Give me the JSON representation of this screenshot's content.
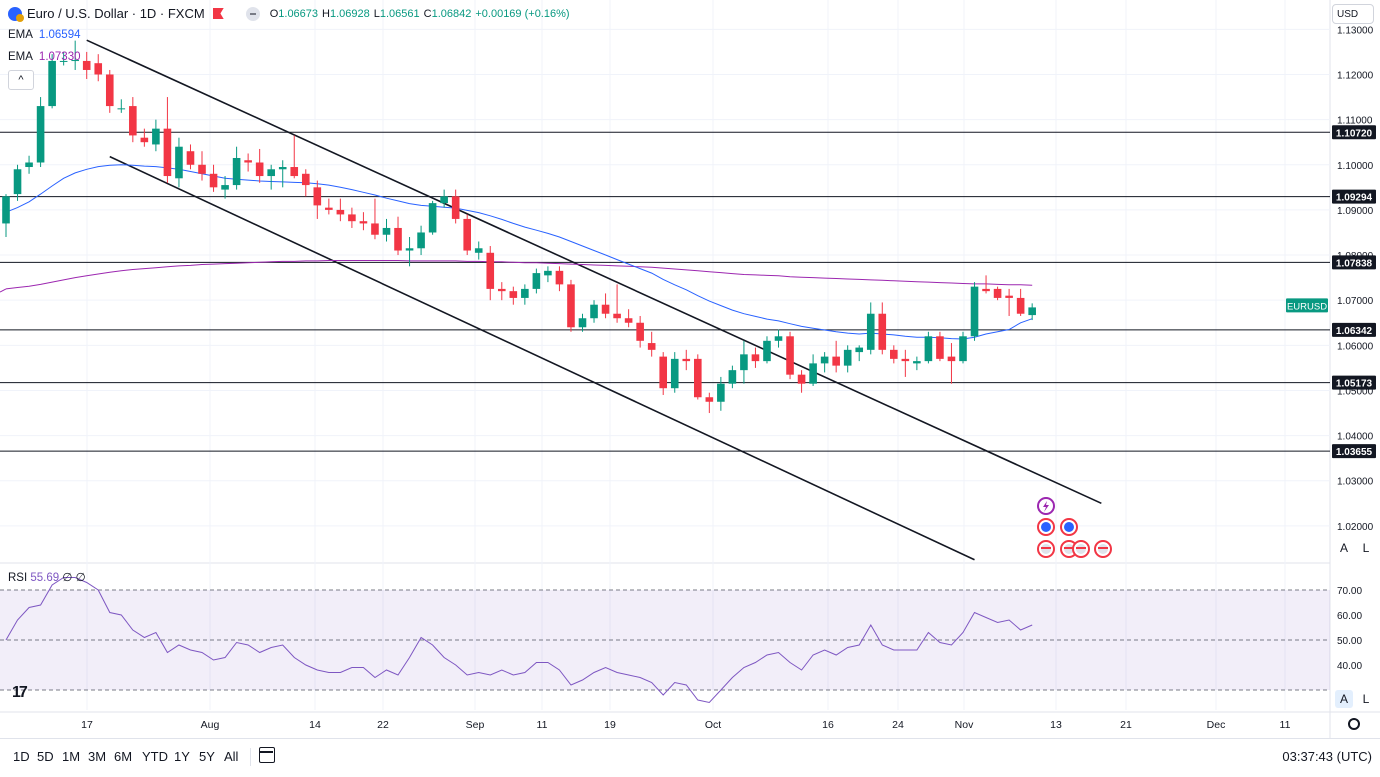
{
  "header": {
    "title": "Euro / U.S. Dollar · 1D · FXCM",
    "ohlc": [
      {
        "k": "O",
        "v": "1.06673"
      },
      {
        "k": "H",
        "v": "1.06928"
      },
      {
        "k": "L",
        "v": "1.06561"
      },
      {
        "k": "C",
        "v": "1.06842"
      }
    ],
    "change": "+0.00169 (+0.16%)"
  },
  "indicators": {
    "ema1": {
      "name": "EMA",
      "value": "1.06594",
      "color": "#2962ff"
    },
    "ema2": {
      "name": "EMA",
      "value": "1.07330",
      "color": "#9c27b0"
    },
    "rsi": {
      "name": "RSI",
      "value": "55.69",
      "extra": "∅ ∅",
      "color": "#7e57c2"
    }
  },
  "currency_label": "USD",
  "price_axis": {
    "ticks": [
      "1.13000",
      "1.12000",
      "1.11000",
      "1.10000",
      "1.09000",
      "1.08000",
      "1.07000",
      "1.06000",
      "1.05000",
      "1.04000",
      "1.03000",
      "1.02000"
    ],
    "levels": [
      "1.10720",
      "1.09294",
      "1.07838",
      "1.06342",
      "1.05173",
      "1.03655"
    ],
    "symbol_tag": "EURUSD"
  },
  "rsi_axis": {
    "ticks": [
      "70.00",
      "60.00",
      "50.00",
      "40.00"
    ]
  },
  "time_axis": [
    "17",
    "Aug",
    "14",
    "22",
    "Sep",
    "11",
    "19",
    "Oct",
    "16",
    "24",
    "Nov",
    "13",
    "21",
    "Dec",
    "11"
  ],
  "timeframes": [
    "1D",
    "5D",
    "1M",
    "3M",
    "6M",
    "YTD",
    "1Y",
    "5Y",
    "All"
  ],
  "clock": "03:37:43 (UTC)",
  "scale_buttons": {
    "auto": "A",
    "log": "L"
  },
  "colors": {
    "up": "#089981",
    "down": "#f23645",
    "ema_fast": "#2962ff",
    "ema_slow": "#9c27b0",
    "rsi": "#7e57c2"
  },
  "chart_data": {
    "type": "candlestick",
    "series_note": "Daily EUR/USD candles, approx Jul 11 – Nov 10",
    "candles": [
      {
        "o": 1.087,
        "h": 1.0935,
        "l": 1.084,
        "c": 1.093
      },
      {
        "o": 1.0935,
        "h": 1.1,
        "l": 1.092,
        "c": 1.099
      },
      {
        "o": 1.0995,
        "h": 1.102,
        "l": 1.098,
        "c": 1.1005
      },
      {
        "o": 1.1005,
        "h": 1.115,
        "l": 1.0995,
        "c": 1.113
      },
      {
        "o": 1.113,
        "h": 1.1245,
        "l": 1.1125,
        "c": 1.123
      },
      {
        "o": 1.123,
        "h": 1.125,
        "l": 1.122,
        "c": 1.123
      },
      {
        "o": 1.123,
        "h": 1.1275,
        "l": 1.121,
        "c": 1.1232
      },
      {
        "o": 1.123,
        "h": 1.125,
        "l": 1.119,
        "c": 1.121
      },
      {
        "o": 1.1225,
        "h": 1.1245,
        "l": 1.1185,
        "c": 1.12
      },
      {
        "o": 1.12,
        "h": 1.121,
        "l": 1.1115,
        "c": 1.113
      },
      {
        "o": 1.1125,
        "h": 1.1145,
        "l": 1.1115,
        "c": 1.1125
      },
      {
        "o": 1.113,
        "h": 1.115,
        "l": 1.105,
        "c": 1.1065
      },
      {
        "o": 1.106,
        "h": 1.108,
        "l": 1.104,
        "c": 1.105
      },
      {
        "o": 1.1045,
        "h": 1.11,
        "l": 1.103,
        "c": 1.108
      },
      {
        "o": 1.108,
        "h": 1.115,
        "l": 1.096,
        "c": 1.0975
      },
      {
        "o": 1.097,
        "h": 1.106,
        "l": 1.095,
        "c": 1.104
      },
      {
        "o": 1.103,
        "h": 1.1045,
        "l": 1.099,
        "c": 1.1
      },
      {
        "o": 1.1,
        "h": 1.103,
        "l": 1.0965,
        "c": 1.098
      },
      {
        "o": 1.098,
        "h": 1.1,
        "l": 1.094,
        "c": 1.095
      },
      {
        "o": 1.0945,
        "h": 1.0975,
        "l": 1.0925,
        "c": 1.0955
      },
      {
        "o": 1.0955,
        "h": 1.104,
        "l": 1.0945,
        "c": 1.1015
      },
      {
        "o": 1.101,
        "h": 1.1025,
        "l": 1.0985,
        "c": 1.1005
      },
      {
        "o": 1.1005,
        "h": 1.1035,
        "l": 1.096,
        "c": 1.0975
      },
      {
        "o": 1.0975,
        "h": 1.1,
        "l": 1.0945,
        "c": 1.099
      },
      {
        "o": 1.099,
        "h": 1.101,
        "l": 1.095,
        "c": 1.0995
      },
      {
        "o": 1.0995,
        "h": 1.1065,
        "l": 1.097,
        "c": 1.0975
      },
      {
        "o": 1.098,
        "h": 1.099,
        "l": 1.093,
        "c": 1.0955
      },
      {
        "o": 1.095,
        "h": 1.0965,
        "l": 1.088,
        "c": 1.091
      },
      {
        "o": 1.0905,
        "h": 1.0925,
        "l": 1.089,
        "c": 1.09
      },
      {
        "o": 1.09,
        "h": 1.0925,
        "l": 1.0875,
        "c": 1.089
      },
      {
        "o": 1.089,
        "h": 1.0905,
        "l": 1.086,
        "c": 1.0875
      },
      {
        "o": 1.0875,
        "h": 1.0895,
        "l": 1.0855,
        "c": 1.087
      },
      {
        "o": 1.087,
        "h": 1.0925,
        "l": 1.0835,
        "c": 1.0845
      },
      {
        "o": 1.0845,
        "h": 1.088,
        "l": 1.083,
        "c": 1.086
      },
      {
        "o": 1.086,
        "h": 1.0885,
        "l": 1.08,
        "c": 1.081
      },
      {
        "o": 1.081,
        "h": 1.084,
        "l": 1.0775,
        "c": 1.0815
      },
      {
        "o": 1.0815,
        "h": 1.0865,
        "l": 1.08,
        "c": 1.085
      },
      {
        "o": 1.085,
        "h": 1.092,
        "l": 1.0845,
        "c": 1.0915
      },
      {
        "o": 1.0915,
        "h": 1.0945,
        "l": 1.0905,
        "c": 1.093
      },
      {
        "o": 1.093,
        "h": 1.0945,
        "l": 1.087,
        "c": 1.088
      },
      {
        "o": 1.088,
        "h": 1.089,
        "l": 1.08,
        "c": 1.081
      },
      {
        "o": 1.0805,
        "h": 1.083,
        "l": 1.079,
        "c": 1.0815
      },
      {
        "o": 1.0805,
        "h": 1.082,
        "l": 1.07,
        "c": 1.0725
      },
      {
        "o": 1.0725,
        "h": 1.074,
        "l": 1.07,
        "c": 1.072
      },
      {
        "o": 1.072,
        "h": 1.073,
        "l": 1.069,
        "c": 1.0705
      },
      {
        "o": 1.0705,
        "h": 1.0735,
        "l": 1.069,
        "c": 1.0725
      },
      {
        "o": 1.0725,
        "h": 1.077,
        "l": 1.0715,
        "c": 1.076
      },
      {
        "o": 1.0755,
        "h": 1.0775,
        "l": 1.074,
        "c": 1.0765
      },
      {
        "o": 1.0765,
        "h": 1.0775,
        "l": 1.072,
        "c": 1.0735
      },
      {
        "o": 1.0735,
        "h": 1.0745,
        "l": 1.063,
        "c": 1.064
      },
      {
        "o": 1.064,
        "h": 1.067,
        "l": 1.063,
        "c": 1.066
      },
      {
        "o": 1.066,
        "h": 1.07,
        "l": 1.065,
        "c": 1.069
      },
      {
        "o": 1.069,
        "h": 1.0715,
        "l": 1.066,
        "c": 1.067
      },
      {
        "o": 1.067,
        "h": 1.0735,
        "l": 1.065,
        "c": 1.066
      },
      {
        "o": 1.066,
        "h": 1.068,
        "l": 1.064,
        "c": 1.065
      },
      {
        "o": 1.065,
        "h": 1.0665,
        "l": 1.0595,
        "c": 1.061
      },
      {
        "o": 1.0605,
        "h": 1.063,
        "l": 1.0575,
        "c": 1.059
      },
      {
        "o": 1.0575,
        "h": 1.0585,
        "l": 1.049,
        "c": 1.0505
      },
      {
        "o": 1.0505,
        "h": 1.0585,
        "l": 1.0495,
        "c": 1.057
      },
      {
        "o": 1.057,
        "h": 1.059,
        "l": 1.0545,
        "c": 1.0565
      },
      {
        "o": 1.057,
        "h": 1.058,
        "l": 1.048,
        "c": 1.0485
      },
      {
        "o": 1.0485,
        "h": 1.0495,
        "l": 1.045,
        "c": 1.0475
      },
      {
        "o": 1.0475,
        "h": 1.053,
        "l": 1.0455,
        "c": 1.0515
      },
      {
        "o": 1.0515,
        "h": 1.0555,
        "l": 1.0505,
        "c": 1.0545
      },
      {
        "o": 1.0545,
        "h": 1.061,
        "l": 1.0515,
        "c": 1.058
      },
      {
        "o": 1.058,
        "h": 1.0595,
        "l": 1.055,
        "c": 1.0565
      },
      {
        "o": 1.0565,
        "h": 1.062,
        "l": 1.056,
        "c": 1.061
      },
      {
        "o": 1.061,
        "h": 1.0635,
        "l": 1.0595,
        "c": 1.062
      },
      {
        "o": 1.062,
        "h": 1.063,
        "l": 1.0525,
        "c": 1.0535
      },
      {
        "o": 1.0535,
        "h": 1.0545,
        "l": 1.0495,
        "c": 1.0515
      },
      {
        "o": 1.0515,
        "h": 1.058,
        "l": 1.051,
        "c": 1.056
      },
      {
        "o": 1.056,
        "h": 1.0585,
        "l": 1.054,
        "c": 1.0575
      },
      {
        "o": 1.0575,
        "h": 1.061,
        "l": 1.054,
        "c": 1.0555
      },
      {
        "o": 1.0555,
        "h": 1.06,
        "l": 1.054,
        "c": 1.059
      },
      {
        "o": 1.0585,
        "h": 1.06,
        "l": 1.0565,
        "c": 1.0595
      },
      {
        "o": 1.059,
        "h": 1.0695,
        "l": 1.058,
        "c": 1.067
      },
      {
        "o": 1.067,
        "h": 1.0695,
        "l": 1.058,
        "c": 1.059
      },
      {
        "o": 1.059,
        "h": 1.06,
        "l": 1.056,
        "c": 1.057
      },
      {
        "o": 1.057,
        "h": 1.059,
        "l": 1.053,
        "c": 1.0565
      },
      {
        "o": 1.056,
        "h": 1.0575,
        "l": 1.0545,
        "c": 1.0565
      },
      {
        "o": 1.0565,
        "h": 1.063,
        "l": 1.056,
        "c": 1.062
      },
      {
        "o": 1.062,
        "h": 1.063,
        "l": 1.0565,
        "c": 1.057
      },
      {
        "o": 1.0575,
        "h": 1.0605,
        "l": 1.0515,
        "c": 1.0565
      },
      {
        "o": 1.0565,
        "h": 1.063,
        "l": 1.056,
        "c": 1.062
      },
      {
        "o": 1.062,
        "h": 1.074,
        "l": 1.061,
        "c": 1.073
      },
      {
        "o": 1.0725,
        "h": 1.0755,
        "l": 1.0715,
        "c": 1.072
      },
      {
        "o": 1.0725,
        "h": 1.073,
        "l": 1.07,
        "c": 1.0705
      },
      {
        "o": 1.071,
        "h": 1.0725,
        "l": 1.0665,
        "c": 1.0705
      },
      {
        "o": 1.0705,
        "h": 1.0725,
        "l": 1.0665,
        "c": 1.067
      },
      {
        "o": 1.0667,
        "h": 1.0693,
        "l": 1.0656,
        "c": 1.0684
      }
    ],
    "ema_fast": [
      1.0895,
      1.0905,
      1.0918,
      1.0935,
      1.0953,
      1.097,
      1.0982,
      1.099,
      1.0996,
      1.0999,
      1.1,
      1.0999,
      1.0997,
      1.0996,
      1.0993,
      1.099,
      1.0985,
      1.098,
      1.0975,
      1.097,
      1.0968,
      1.0966,
      1.0964,
      1.0963,
      1.0962,
      1.0961,
      1.096,
      1.0958,
      1.0955,
      1.095,
      1.0945,
      1.0939,
      1.0933,
      1.0926,
      1.092,
      1.0914,
      1.091,
      1.0908,
      1.0906,
      1.0904,
      1.0899,
      1.0894,
      1.0887,
      1.0879,
      1.087,
      1.0862,
      1.0855,
      1.0848,
      1.084,
      1.083,
      1.082,
      1.081,
      1.08,
      1.079,
      1.078,
      1.077,
      1.076,
      1.0746,
      1.0734,
      1.0723,
      1.071,
      1.0698,
      1.0688,
      1.0678,
      1.067,
      1.0664,
      1.0658,
      1.0654,
      1.0648,
      1.0642,
      1.0638,
      1.0634,
      1.063,
      1.0627,
      1.0625,
      1.0627,
      1.0625,
      1.0623,
      1.062,
      1.0618,
      1.0618,
      1.0617,
      1.0615,
      1.0614,
      1.0618,
      1.0625,
      1.063,
      1.0635,
      1.065,
      1.0659
    ],
    "ema_slow": [
      1.0725,
      1.0728,
      1.0731,
      1.0735,
      1.074,
      1.0745,
      1.075,
      1.0754,
      1.0758,
      1.0762,
      1.0765,
      1.0768,
      1.077,
      1.0772,
      1.0774,
      1.0776,
      1.0777,
      1.0779,
      1.078,
      1.0781,
      1.0782,
      1.0783,
      1.0784,
      1.0785,
      1.0786,
      1.0786,
      1.0787,
      1.0787,
      1.0788,
      1.0788,
      1.0788,
      1.0788,
      1.0788,
      1.0788,
      1.0788,
      1.0787,
      1.0787,
      1.0787,
      1.0787,
      1.0787,
      1.0786,
      1.0786,
      1.0785,
      1.0785,
      1.0784,
      1.0783,
      1.0783,
      1.0782,
      1.0781,
      1.078,
      1.0779,
      1.0778,
      1.0777,
      1.0776,
      1.0775,
      1.0774,
      1.0773,
      1.0771,
      1.0769,
      1.0767,
      1.0765,
      1.0763,
      1.0761,
      1.0759,
      1.0757,
      1.0756,
      1.0755,
      1.0754,
      1.0752,
      1.0751,
      1.075,
      1.0749,
      1.0748,
      1.0747,
      1.0746,
      1.0745,
      1.0744,
      1.0743,
      1.0742,
      1.0741,
      1.074,
      1.0739,
      1.0738,
      1.0737,
      1.0736,
      1.0736,
      1.0735,
      1.0734,
      1.0734,
      1.0733
    ],
    "rsi": [
      50,
      58,
      63,
      64,
      72,
      75,
      75,
      73,
      70,
      61,
      60,
      54,
      51,
      53,
      45,
      48,
      46,
      45,
      42,
      43,
      49,
      48,
      45,
      47,
      48,
      43,
      40,
      38,
      37,
      37,
      39,
      39,
      35,
      38,
      36,
      43,
      51,
      48,
      43,
      40,
      36,
      37,
      36,
      38,
      36,
      37,
      41,
      41,
      38,
      32,
      34,
      37,
      39,
      37,
      36,
      35,
      33,
      28,
      33,
      32,
      26,
      25,
      30,
      35,
      39,
      41,
      44,
      45,
      41,
      38,
      44,
      46,
      44,
      47,
      48,
      56,
      48,
      46,
      46,
      46,
      53,
      49,
      48,
      53,
      61,
      59,
      57,
      58,
      54,
      56
    ],
    "channel_upper": [
      {
        "i": 7,
        "p": 1.1276
      },
      {
        "i": 95,
        "p": 1.025
      }
    ],
    "channel_lower": [
      {
        "i": 9,
        "p": 1.1018
      },
      {
        "i": 84,
        "p": 1.0125
      }
    ],
    "ylim": [
      1.012,
      1.1365
    ],
    "rsi_ylim": [
      22,
      80
    ]
  }
}
